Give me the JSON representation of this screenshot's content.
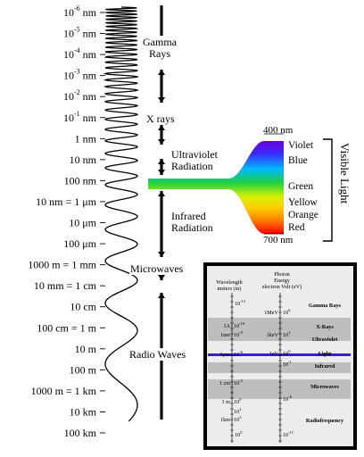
{
  "scale_labels": [
    {
      "m": "10",
      "e": "-6",
      "u": " nm"
    },
    {
      "m": "10",
      "e": "-5",
      "u": " nm"
    },
    {
      "m": "10",
      "e": "-4",
      "u": " nm"
    },
    {
      "m": "10",
      "e": "-3",
      "u": " nm"
    },
    {
      "m": "10",
      "e": "-2",
      "u": " nm"
    },
    {
      "m": "10",
      "e": "-1",
      "u": " nm"
    },
    {
      "m": "1 nm",
      "e": "",
      "u": ""
    },
    {
      "m": "10 nm",
      "e": "",
      "u": ""
    },
    {
      "m": "100 nm",
      "e": "",
      "u": ""
    },
    {
      "m": "10  nm = 1 μm",
      "e": "",
      "u": ""
    },
    {
      "m": "10 μm",
      "e": "",
      "u": ""
    },
    {
      "m": "100 μm",
      "e": "",
      "u": ""
    },
    {
      "m": "1000  m = 1 mm",
      "e": "",
      "u": ""
    },
    {
      "m": "10 mm = 1 cm",
      "e": "",
      "u": ""
    },
    {
      "m": "10 cm",
      "e": "",
      "u": ""
    },
    {
      "m": "100 cm = 1 m",
      "e": "",
      "u": ""
    },
    {
      "m": "10 m",
      "e": "",
      "u": ""
    },
    {
      "m": "100 m",
      "e": "",
      "u": ""
    },
    {
      "m": "1000 m = 1 km",
      "e": "",
      "u": ""
    },
    {
      "m": "10 km",
      "e": "",
      "u": ""
    },
    {
      "m": "100 km",
      "e": "",
      "u": ""
    }
  ],
  "regions": [
    {
      "lines": [
        "Gamma",
        "Rays"
      ]
    },
    {
      "lines": [
        "X rays"
      ]
    },
    {
      "lines": [
        "Ultraviolet",
        "Radiation"
      ]
    },
    {
      "lines": [
        "Infrared",
        "Radiation"
      ]
    },
    {
      "lines": [
        "Microwaves"
      ]
    },
    {
      "lines": [
        "Radio Waves"
      ]
    }
  ],
  "visible": {
    "top_label": "400 nm",
    "bottom_label": "700 nm",
    "bracket_label": "Visible Light",
    "colors": [
      "Violet",
      "Blue",
      "Green",
      "Yellow",
      "Orange",
      "Red"
    ]
  },
  "inset": {
    "col1_header": [
      "Wavelength",
      "meters (m)"
    ],
    "col2_header": [
      "Photon",
      "Energy",
      "electron Volt (eV)"
    ],
    "wavelength_marks": [
      {
        "m": "10",
        "e": "-13"
      },
      {
        "m": "1A",
        "e": "",
        "extra": "10",
        "extra_e": "-10"
      },
      {
        "m": "1nm",
        "e": "",
        "extra": "10",
        "extra_e": "-9"
      },
      {
        "m": "1µm",
        "e": "",
        "extra": "10",
        "extra_e": "-6"
      },
      {
        "m": "1 cm",
        "e": "",
        "extra": "10",
        "extra_e": "-2"
      },
      {
        "m": "1 m",
        "e": "",
        "extra": "10",
        "extra_e": "0"
      },
      {
        "m": "",
        "e": "",
        "extra": "10",
        "extra_e": "2"
      },
      {
        "m": "1km",
        "e": "",
        "extra": "10",
        "extra_e": "3"
      },
      {
        "m": "10",
        "e": "5"
      }
    ],
    "energy_marks": [
      {
        "m": "1MeV",
        "x": "10",
        "e": "6"
      },
      {
        "m": "1keV",
        "x": "10",
        "e": "3"
      },
      {
        "m": "1eV",
        "x": "10",
        "e": "0"
      },
      {
        "m": "",
        "x": "10",
        "e": "-1"
      },
      {
        "m": "",
        "x": "10",
        "e": "-6"
      },
      {
        "m": "",
        "x": "10",
        "e": "-11"
      }
    ],
    "bands": [
      "Gamma Rays",
      "X-Rays",
      "Ultraviolet",
      "Light",
      "Infrared",
      "Microwaves",
      "Radiofrequency"
    ]
  },
  "colors": {
    "bg": "#ffffff",
    "ink": "#000000",
    "inset_bg": "#ececec",
    "band_gray": "#bdbdbd",
    "light_line": "#3a1fd0"
  }
}
